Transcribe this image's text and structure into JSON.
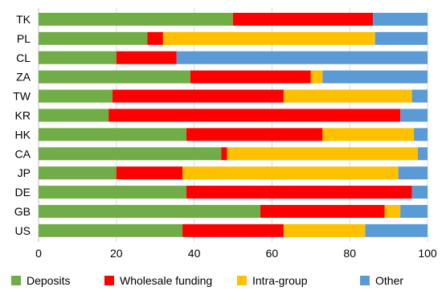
{
  "chart_data": {
    "type": "bar",
    "orientation": "horizontal",
    "stacked": true,
    "title": "",
    "xlabel": "",
    "ylabel": "",
    "xlim": [
      0,
      100
    ],
    "xticks": [
      0,
      20,
      40,
      60,
      80,
      100
    ],
    "grid": "vertical",
    "legend_position": "bottom",
    "categories": [
      "TK",
      "PL",
      "CL",
      "ZA",
      "TW",
      "KR",
      "HK",
      "CA",
      "JP",
      "DE",
      "GB",
      "US"
    ],
    "series": [
      {
        "name": "Deposits",
        "color": "#70AD47",
        "values": [
          50,
          28,
          20,
          39,
          19,
          18,
          38,
          47,
          20,
          38,
          57,
          37
        ]
      },
      {
        "name": "Wholesale funding",
        "color": "#FF0000",
        "values": [
          36,
          4,
          15.5,
          31,
          44,
          75,
          35,
          1.5,
          17,
          58,
          32,
          26
        ]
      },
      {
        "name": "Intra-group",
        "color": "#FFC000",
        "values": [
          0,
          54.5,
          0,
          3,
          33,
          0,
          23.5,
          49,
          55.5,
          0,
          4,
          21
        ]
      },
      {
        "name": "Other",
        "color": "#5B9BD5",
        "values": [
          14,
          13.5,
          64.5,
          27,
          4,
          7,
          3.5,
          2.5,
          7.5,
          4,
          7,
          16
        ]
      }
    ]
  }
}
